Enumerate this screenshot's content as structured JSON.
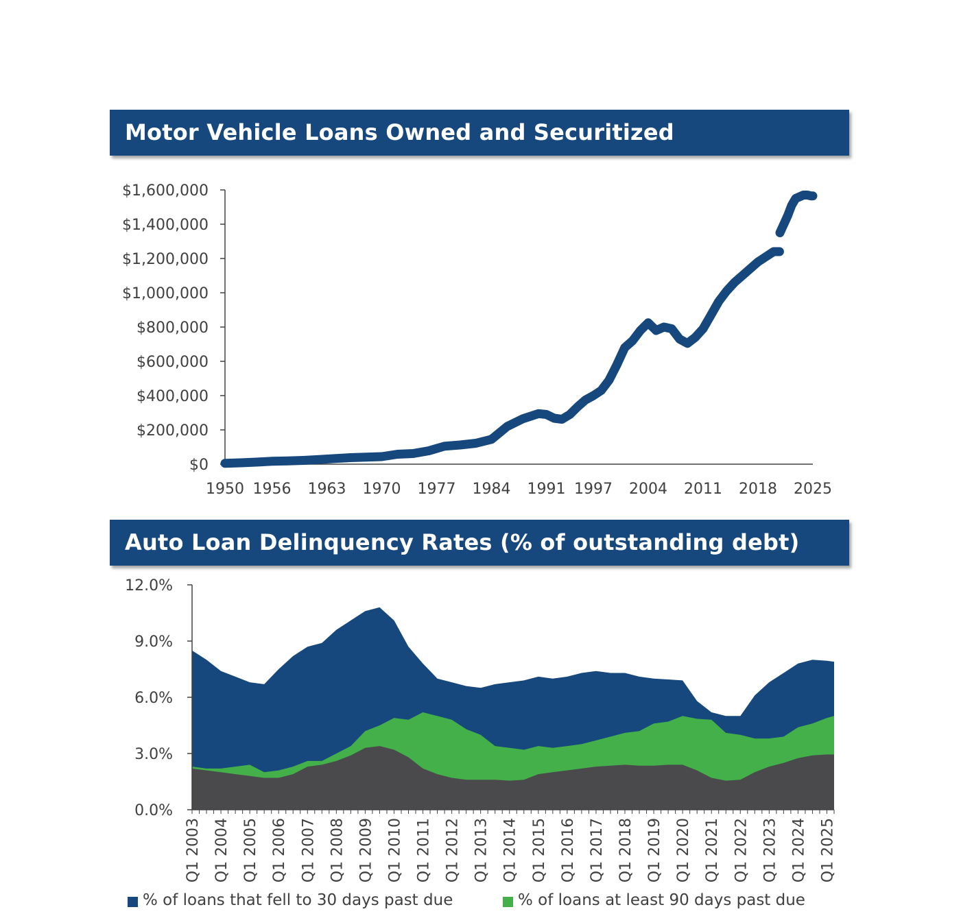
{
  "colors": {
    "header_bg": "#16477d",
    "line": "#16477d",
    "area_30": "#16477d",
    "area_90": "#43b04a",
    "area_base": "#4a4a4d",
    "axis": "#404040"
  },
  "chart_data": [
    {
      "type": "line",
      "title": "Motor Vehicle Loans Owned and Securitized",
      "xlabel": "",
      "ylabel": "",
      "xlim": [
        1950,
        2025
      ],
      "ylim": [
        0,
        1600000
      ],
      "x_ticks": [
        "1950",
        "1956",
        "1963",
        "1970",
        "1977",
        "1984",
        "1991",
        "1997",
        "2004",
        "2011",
        "2018",
        "2025"
      ],
      "y_ticks": [
        "$0",
        "$200,000",
        "$400,000",
        "$600,000",
        "$800,000",
        "$1,000,000",
        "$1,200,000",
        "$1,400,000",
        "$1,600,000"
      ],
      "grid": false,
      "series": [
        {
          "x": [
            1950,
            1952,
            1954,
            1956,
            1958,
            1960,
            1962,
            1964,
            1966,
            1968,
            1970,
            1972,
            1974,
            1976,
            1978,
            1980,
            1982,
            1984,
            1986,
            1988,
            1990,
            1991,
            1992,
            1993,
            1994,
            1995,
            1996,
            1997,
            1998,
            1999,
            2000,
            2001,
            2002,
            2003,
            2004,
            2005,
            2006,
            2007,
            2008,
            2009,
            2010,
            2011,
            2012,
            2013,
            2014,
            2015,
            2016,
            2017,
            2018,
            2019,
            2020,
            2020.75
          ],
          "values": [
            5000,
            8000,
            12000,
            17000,
            19000,
            22000,
            27000,
            33000,
            38000,
            41000,
            44000,
            58000,
            62000,
            78000,
            105000,
            112000,
            122000,
            145000,
            220000,
            265000,
            295000,
            290000,
            268000,
            262000,
            290000,
            335000,
            375000,
            400000,
            430000,
            490000,
            580000,
            680000,
            720000,
            780000,
            825000,
            780000,
            800000,
            790000,
            730000,
            705000,
            740000,
            790000,
            870000,
            950000,
            1010000,
            1060000,
            1100000,
            1140000,
            1180000,
            1210000,
            1240000,
            1240000
          ]
        },
        {
          "x": [
            2020.8,
            2021.3,
            2021.8,
            2022.3,
            2022.8,
            2023.3,
            2023.8,
            2024.3,
            2024.8,
            2025
          ],
          "values": [
            1350000,
            1400000,
            1450000,
            1510000,
            1550000,
            1560000,
            1570000,
            1570000,
            1565000,
            1565000
          ]
        }
      ]
    },
    {
      "type": "area",
      "title": "Auto Loan Delinquency Rates (% of outstanding debt)",
      "xlabel": "",
      "ylabel": "",
      "xlim": [
        2003,
        2025.25
      ],
      "ylim": [
        0,
        12
      ],
      "y_ticks": [
        "0.0%",
        "3.0%",
        "6.0%",
        "9.0%",
        "12.0%"
      ],
      "x_ticks": [
        "Q1 2003",
        "Q1 2004",
        "Q1 2005",
        "Q1 2006",
        "Q1 2007",
        "Q1 2008",
        "Q1 2009",
        "Q1 2010",
        "Q1 2011",
        "Q1 2012",
        "Q1 2013",
        "Q1 2014",
        "Q1 2015",
        "Q1 2016",
        "Q1 2017",
        "Q1 2018",
        "Q1 2019",
        "Q1 2020",
        "Q1 2021",
        "Q1 2022",
        "Q1 2023",
        "Q1 2024",
        "Q1 2025"
      ],
      "grid": false,
      "legend_position": "bottom",
      "series": [
        {
          "name": "% of loans that fell to 30 days past due",
          "x": [
            2003,
            2003.5,
            2004,
            2004.5,
            2005,
            2005.5,
            2006,
            2006.5,
            2007,
            2007.5,
            2008,
            2008.5,
            2009,
            2009.5,
            2010,
            2010.5,
            2011,
            2011.5,
            2012,
            2012.5,
            2013,
            2013.5,
            2014,
            2014.5,
            2015,
            2015.5,
            2016,
            2016.5,
            2017,
            2017.5,
            2018,
            2018.5,
            2019,
            2019.5,
            2020,
            2020.5,
            2021,
            2021.5,
            2022,
            2022.5,
            2023,
            2023.5,
            2024,
            2024.5,
            2025,
            2025.25
          ],
          "values": [
            8.5,
            8.0,
            7.4,
            7.1,
            6.8,
            6.7,
            7.5,
            8.2,
            8.7,
            8.9,
            9.6,
            10.1,
            10.6,
            10.8,
            10.1,
            8.7,
            7.8,
            7.0,
            6.8,
            6.6,
            6.5,
            6.7,
            6.8,
            6.9,
            7.1,
            7.0,
            7.1,
            7.3,
            7.4,
            7.3,
            7.3,
            7.1,
            7.0,
            6.95,
            6.9,
            5.8,
            5.2,
            5.0,
            5.0,
            6.1,
            6.8,
            7.3,
            7.8,
            8.0,
            7.95,
            7.9
          ]
        },
        {
          "name": "% of loans at least 90 days past due",
          "x": [
            2003,
            2003.5,
            2004,
            2004.5,
            2005,
            2005.5,
            2006,
            2006.5,
            2007,
            2007.5,
            2008,
            2008.5,
            2009,
            2009.5,
            2010,
            2010.5,
            2011,
            2011.5,
            2012,
            2012.5,
            2013,
            2013.5,
            2014,
            2014.5,
            2015,
            2015.5,
            2016,
            2016.5,
            2017,
            2017.5,
            2018,
            2018.5,
            2019,
            2019.5,
            2020,
            2020.5,
            2021,
            2021.5,
            2022,
            2022.5,
            2023,
            2023.5,
            2024,
            2024.5,
            2025,
            2025.25
          ],
          "values": [
            2.3,
            2.2,
            2.2,
            2.3,
            2.4,
            2.0,
            2.1,
            2.3,
            2.6,
            2.6,
            3.0,
            3.4,
            4.2,
            4.5,
            4.9,
            4.8,
            5.2,
            5.0,
            4.8,
            4.3,
            4.0,
            3.4,
            3.3,
            3.2,
            3.4,
            3.3,
            3.4,
            3.5,
            3.7,
            3.9,
            4.1,
            4.2,
            4.6,
            4.7,
            5.0,
            4.85,
            4.8,
            4.1,
            4.0,
            3.8,
            3.8,
            3.9,
            4.4,
            4.6,
            4.9,
            5.0
          ]
        },
        {
          "name": "",
          "x": [
            2003,
            2003.5,
            2004,
            2004.5,
            2005,
            2005.5,
            2006,
            2006.5,
            2007,
            2007.5,
            2008,
            2008.5,
            2009,
            2009.5,
            2010,
            2010.5,
            2011,
            2011.5,
            2012,
            2012.5,
            2013,
            2013.5,
            2014,
            2014.5,
            2015,
            2015.5,
            2016,
            2016.5,
            2017,
            2017.5,
            2018,
            2018.5,
            2019,
            2019.5,
            2020,
            2020.5,
            2021,
            2021.5,
            2022,
            2022.5,
            2023,
            2023.5,
            2024,
            2024.5,
            2025,
            2025.25
          ],
          "values": [
            2.2,
            2.1,
            2.0,
            1.9,
            1.8,
            1.7,
            1.7,
            1.9,
            2.3,
            2.4,
            2.6,
            2.9,
            3.3,
            3.4,
            3.2,
            2.8,
            2.2,
            1.9,
            1.7,
            1.6,
            1.6,
            1.6,
            1.55,
            1.6,
            1.9,
            2.0,
            2.1,
            2.2,
            2.3,
            2.35,
            2.4,
            2.35,
            2.35,
            2.4,
            2.4,
            2.1,
            1.7,
            1.55,
            1.6,
            2.0,
            2.3,
            2.5,
            2.75,
            2.9,
            2.95,
            2.95
          ]
        }
      ]
    }
  ]
}
